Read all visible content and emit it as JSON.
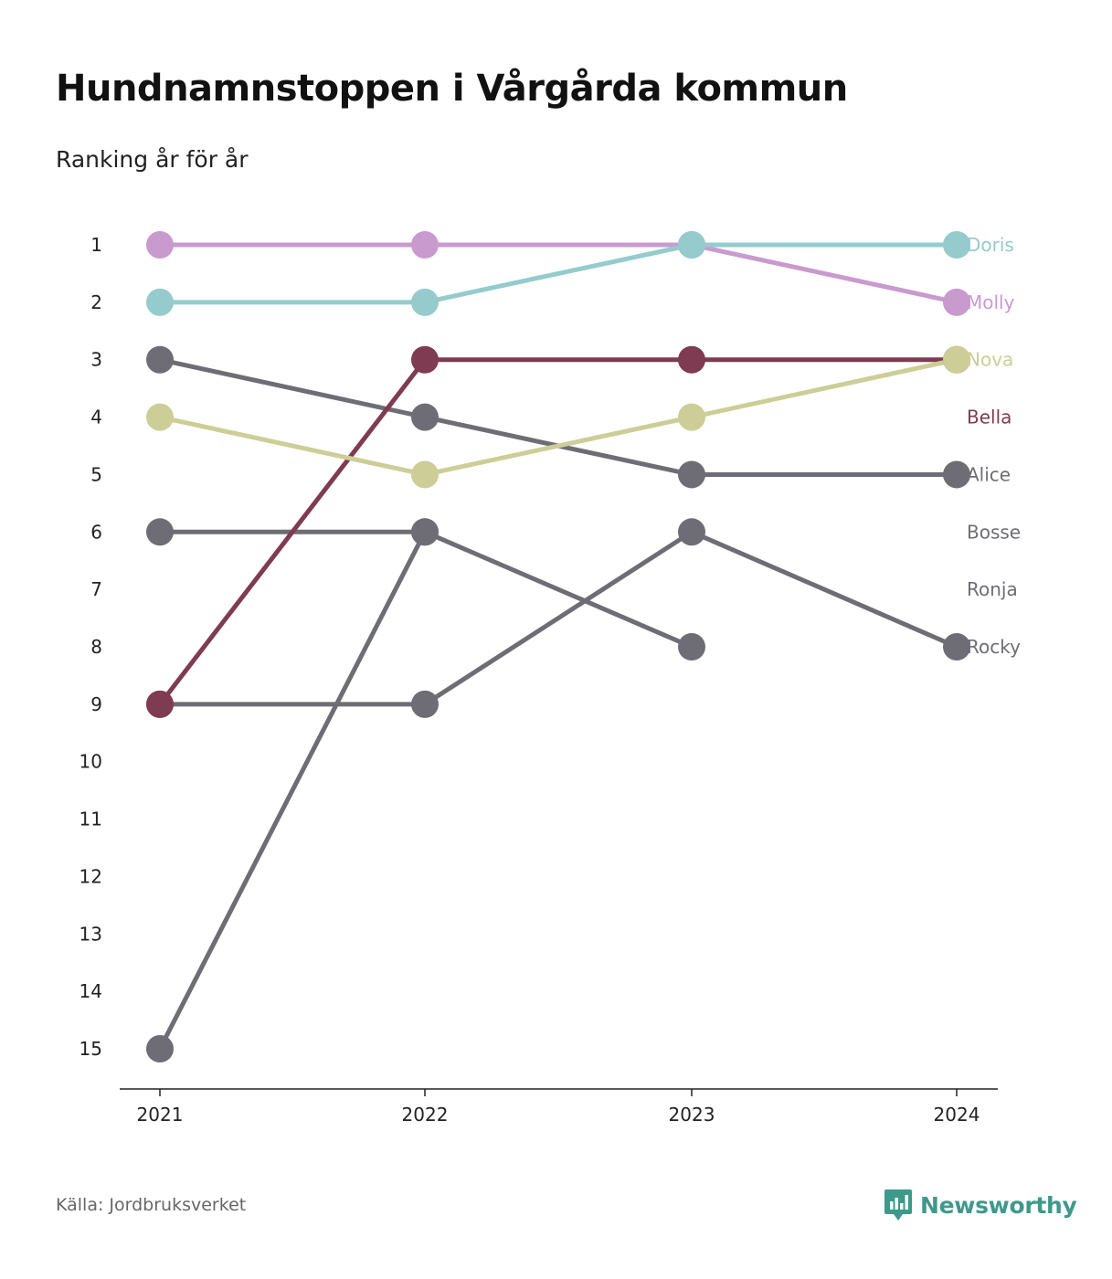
{
  "header": {
    "title": "Hundnamnstoppen i Vårgårda kommun",
    "subtitle": "Ranking år för år"
  },
  "footer": {
    "source": "Källa: Jordbruksverket",
    "brand": "Newsworthy",
    "brand_color": "#3d9a8b",
    "brand_icon": "bar-chart-icon"
  },
  "chart_data": {
    "type": "line",
    "x": [
      "2021",
      "2022",
      "2023",
      "2024"
    ],
    "y_ticks": [
      1,
      2,
      3,
      4,
      5,
      6,
      7,
      8,
      9,
      10,
      11,
      12,
      13,
      14,
      15
    ],
    "ylim": [
      1,
      15
    ],
    "y_inverted": true,
    "grid": false,
    "legend": "labels at right end of lines",
    "series": [
      {
        "name": "Rocky",
        "color": "#6e6d75",
        "values": [
          9,
          9,
          6,
          8
        ]
      },
      {
        "name": "Ronja",
        "color": "#6e6d75",
        "values": [
          6,
          6,
          8,
          null
        ]
      },
      {
        "name": "Bosse",
        "color": "#6e6d75",
        "values": [
          15,
          6,
          null,
          null
        ]
      },
      {
        "name": "Alice",
        "color": "#6e6d75",
        "values": [
          3,
          4,
          5,
          5
        ]
      },
      {
        "name": "Bella",
        "color": "#7f3b52",
        "values": [
          9,
          3,
          3,
          3
        ]
      },
      {
        "name": "Nova",
        "color": "#cdcd97",
        "values": [
          4,
          5,
          4,
          3
        ]
      },
      {
        "name": "Molly",
        "color": "#c99ace",
        "values": [
          1,
          1,
          1,
          2
        ]
      },
      {
        "name": "Doris",
        "color": "#95cbcc",
        "values": [
          2,
          2,
          1,
          1
        ]
      }
    ],
    "right_labels": [
      {
        "name": "Doris",
        "color": "#95cbcc",
        "rank": 1
      },
      {
        "name": "Molly",
        "color": "#c99ace",
        "rank": 2
      },
      {
        "name": "Nova",
        "color": "#cdcd97",
        "rank": 3
      },
      {
        "name": "Bella",
        "color": "#7f3b52",
        "rank": 4
      },
      {
        "name": "Alice",
        "color": "#6e6d75",
        "rank": 5
      },
      {
        "name": "Bosse",
        "color": "#6e6d75",
        "rank": 6
      },
      {
        "name": "Ronja",
        "color": "#6e6d75",
        "rank": 7
      },
      {
        "name": "Rocky",
        "color": "#6e6d75",
        "rank": 8
      }
    ]
  }
}
